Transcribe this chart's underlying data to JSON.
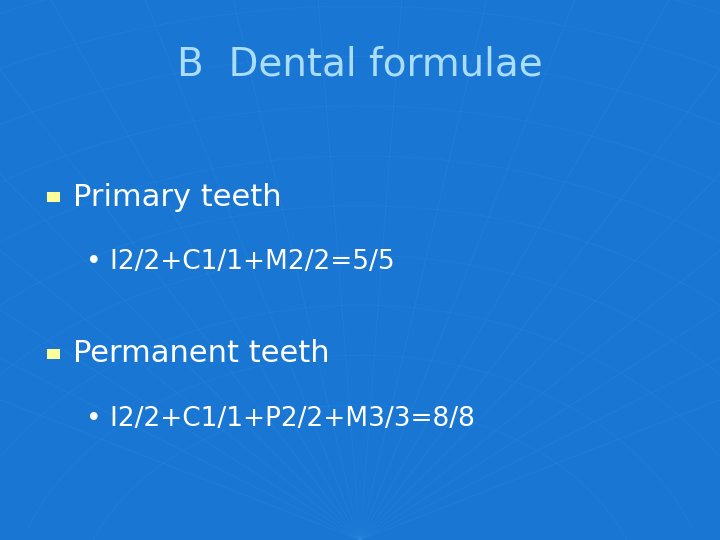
{
  "title": "B  Dental formulae",
  "title_color": "#aaddff",
  "title_fontsize": 28,
  "bg_color": "#1976d2",
  "bullet1_header": "Primary teeth",
  "bullet1_sub": "• I2/2+C1/1+M2/2=5/5",
  "bullet2_header": "Permanent teeth",
  "bullet2_sub": "• I2/2+C1/1+P2/2+M3/3=8/8",
  "header_fontsize": 22,
  "sub_fontsize": 19,
  "text_color": "#ffffff",
  "square_color": "#ffff99",
  "header_color": "#ffffff"
}
